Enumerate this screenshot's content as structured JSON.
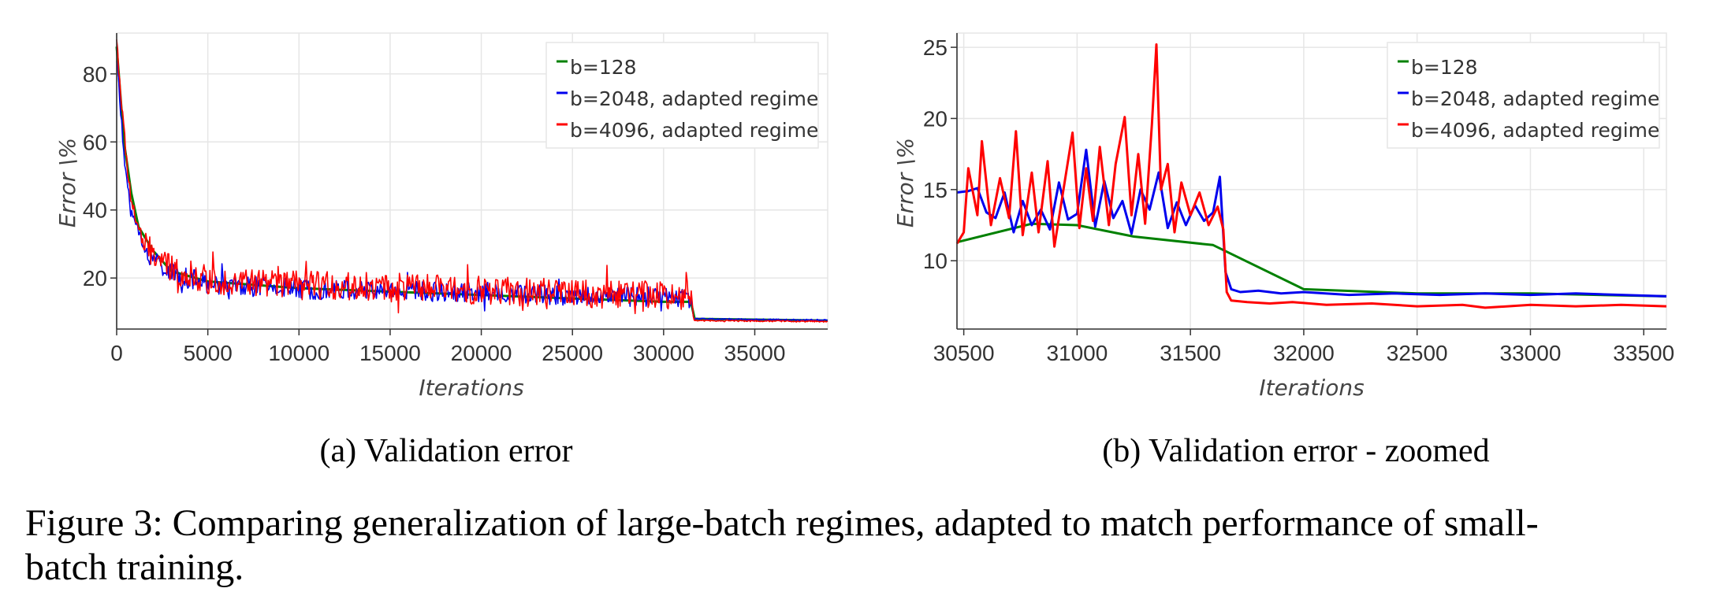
{
  "figure_caption": {
    "line1": "Figure 3: Comparing generalization of large-batch regimes, adapted to match performance of small-",
    "line2": "batch training."
  },
  "colors": {
    "b128": "#008000",
    "b2048": "#0000ee",
    "b4096": "#ff0000",
    "grid": "#e6e6e6",
    "axis": "#333333"
  },
  "chart_data": [
    {
      "type": "line",
      "caption": "(a) Validation error",
      "xlabel": "Iterations",
      "ylabel": "Error \\%",
      "xlim": [
        0,
        39000
      ],
      "ylim": [
        5,
        92
      ],
      "xticks": [
        0,
        5000,
        10000,
        15000,
        20000,
        25000,
        30000,
        35000
      ],
      "yticks": [
        20,
        40,
        60,
        80
      ],
      "grid": true,
      "legend_position": "top-right",
      "series": [
        {
          "name": "b=128",
          "color": "#008000",
          "points": [
            [
              0,
              88
            ],
            [
              400,
              60
            ],
            [
              800,
              45
            ],
            [
              1200,
              35
            ],
            [
              2000,
              28
            ],
            [
              3000,
              22
            ],
            [
              5000,
              19
            ],
            [
              10000,
              17
            ],
            [
              15000,
              16
            ],
            [
              20000,
              15
            ],
            [
              25000,
              14
            ],
            [
              30000,
              13
            ],
            [
              31500,
              13
            ],
            [
              31700,
              8
            ],
            [
              39000,
              7.5
            ]
          ]
        },
        {
          "name": "b=2048, adapted regime",
          "color": "#0000ee",
          "envelope": [
            [
              0,
              85
            ],
            [
              400,
              55
            ],
            [
              800,
              40
            ],
            [
              1500,
              28
            ],
            [
              3000,
              21
            ],
            [
              5000,
              18
            ],
            [
              10000,
              16.5
            ],
            [
              15000,
              16
            ],
            [
              20000,
              15.5
            ],
            [
              25000,
              14.5
            ],
            [
              31500,
              14
            ],
            [
              31650,
              8
            ],
            [
              39000,
              7.6
            ]
          ],
          "noise_amplitude": 5
        },
        {
          "name": "b=4096, adapted regime",
          "color": "#ff0000",
          "envelope": [
            [
              0,
              90
            ],
            [
              400,
              62
            ],
            [
              800,
              42
            ],
            [
              1500,
              29
            ],
            [
              3000,
              22
            ],
            [
              5000,
              19
            ],
            [
              10000,
              17.5
            ],
            [
              15000,
              17
            ],
            [
              20000,
              16
            ],
            [
              25000,
              15
            ],
            [
              31500,
              14.5
            ],
            [
              31650,
              7.5
            ],
            [
              39000,
              7.2
            ]
          ],
          "noise_amplitude": 7
        }
      ]
    },
    {
      "type": "line",
      "caption": "(b) Validation error - zoomed",
      "xlabel": "Iterations",
      "ylabel": "Error \\%",
      "xlim": [
        30470,
        33600
      ],
      "ylim": [
        5.2,
        26
      ],
      "xticks": [
        30500,
        31000,
        31500,
        32000,
        32500,
        33000,
        33500
      ],
      "yticks": [
        10,
        15,
        20,
        25
      ],
      "grid": true,
      "legend_position": "top-right",
      "series": [
        {
          "name": "b=128",
          "color": "#008000",
          "points": [
            [
              30470,
              11.3
            ],
            [
              30800,
              12.6
            ],
            [
              31000,
              12.5
            ],
            [
              31250,
              11.7
            ],
            [
              31600,
              11.1
            ],
            [
              32000,
              8.0
            ],
            [
              32500,
              7.7
            ],
            [
              33000,
              7.7
            ],
            [
              33600,
              7.5
            ]
          ]
        },
        {
          "name": "b=2048, adapted regime",
          "color": "#0000ee",
          "points": [
            [
              30470,
              14.8
            ],
            [
              30520,
              14.9
            ],
            [
              30560,
              15.1
            ],
            [
              30600,
              13.4
            ],
            [
              30640,
              13.0
            ],
            [
              30680,
              14.8
            ],
            [
              30720,
              12.0
            ],
            [
              30760,
              14.2
            ],
            [
              30800,
              12.5
            ],
            [
              30840,
              13.6
            ],
            [
              30880,
              12.2
            ],
            [
              30920,
              15.5
            ],
            [
              30960,
              12.9
            ],
            [
              31000,
              13.3
            ],
            [
              31040,
              17.8
            ],
            [
              31080,
              12.4
            ],
            [
              31120,
              15.6
            ],
            [
              31160,
              13.0
            ],
            [
              31200,
              14.2
            ],
            [
              31240,
              11.9
            ],
            [
              31280,
              15.0
            ],
            [
              31320,
              13.6
            ],
            [
              31360,
              16.2
            ],
            [
              31400,
              12.3
            ],
            [
              31440,
              14.1
            ],
            [
              31480,
              12.5
            ],
            [
              31520,
              13.9
            ],
            [
              31560,
              12.8
            ],
            [
              31600,
              13.4
            ],
            [
              31630,
              15.9
            ],
            [
              31655,
              9.2
            ],
            [
              31680,
              8.0
            ],
            [
              31720,
              7.8
            ],
            [
              31800,
              7.9
            ],
            [
              31900,
              7.7
            ],
            [
              32000,
              7.8
            ],
            [
              32200,
              7.6
            ],
            [
              32400,
              7.7
            ],
            [
              32600,
              7.6
            ],
            [
              32800,
              7.7
            ],
            [
              33000,
              7.6
            ],
            [
              33200,
              7.7
            ],
            [
              33400,
              7.6
            ],
            [
              33600,
              7.5
            ]
          ]
        },
        {
          "name": "b=4096, adapted regime",
          "color": "#ff0000",
          "points": [
            [
              30470,
              11.2
            ],
            [
              30500,
              12.0
            ],
            [
              30520,
              16.5
            ],
            [
              30560,
              13.2
            ],
            [
              30580,
              18.4
            ],
            [
              30620,
              12.5
            ],
            [
              30660,
              15.8
            ],
            [
              30700,
              13.0
            ],
            [
              30730,
              19.1
            ],
            [
              30760,
              11.8
            ],
            [
              30800,
              16.2
            ],
            [
              30830,
              12.0
            ],
            [
              30870,
              17.0
            ],
            [
              30900,
              11.0
            ],
            [
              30940,
              15.0
            ],
            [
              30980,
              19.0
            ],
            [
              31010,
              12.3
            ],
            [
              31040,
              16.5
            ],
            [
              31070,
              12.8
            ],
            [
              31100,
              18.0
            ],
            [
              31140,
              12.5
            ],
            [
              31170,
              16.8
            ],
            [
              31210,
              20.1
            ],
            [
              31240,
              13.2
            ],
            [
              31270,
              17.5
            ],
            [
              31300,
              12.6
            ],
            [
              31330,
              19.6
            ],
            [
              31350,
              25.2
            ],
            [
              31370,
              15.0
            ],
            [
              31400,
              16.8
            ],
            [
              31430,
              12.0
            ],
            [
              31460,
              15.5
            ],
            [
              31500,
              13.2
            ],
            [
              31540,
              14.8
            ],
            [
              31580,
              12.5
            ],
            [
              31620,
              13.8
            ],
            [
              31645,
              12.2
            ],
            [
              31660,
              7.8
            ],
            [
              31680,
              7.2
            ],
            [
              31750,
              7.1
            ],
            [
              31850,
              7.0
            ],
            [
              31950,
              7.1
            ],
            [
              32100,
              6.9
            ],
            [
              32300,
              7.0
            ],
            [
              32500,
              6.8
            ],
            [
              32700,
              6.9
            ],
            [
              32800,
              6.7
            ],
            [
              33000,
              6.9
            ],
            [
              33200,
              6.8
            ],
            [
              33400,
              6.9
            ],
            [
              33600,
              6.8
            ]
          ]
        }
      ]
    }
  ]
}
